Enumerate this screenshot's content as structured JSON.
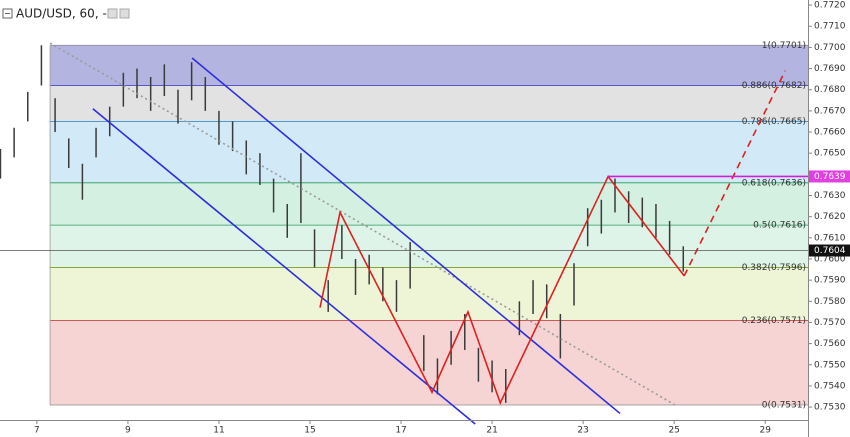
{
  "chart_data": {
    "type": "range-bar",
    "title": "AUD/USD, 60, -",
    "xlim": [
      -0.81,
      16.94
    ],
    "ylim": [
      0.75239,
      0.77224
    ],
    "xticks": [
      {
        "value": 0,
        "label": "7"
      },
      {
        "value": 2,
        "label": "9"
      },
      {
        "value": 4,
        "label": "11"
      },
      {
        "value": 6,
        "label": "15"
      },
      {
        "value": 8,
        "label": "17"
      },
      {
        "value": 10,
        "label": "21"
      },
      {
        "value": 12,
        "label": "23"
      },
      {
        "value": 14,
        "label": "25"
      },
      {
        "value": 16,
        "label": "29"
      }
    ],
    "yticks": [
      {
        "value": 0.753,
        "label": "0.7530"
      },
      {
        "value": 0.754,
        "label": "0.7540"
      },
      {
        "value": 0.755,
        "label": "0.7550"
      },
      {
        "value": 0.756,
        "label": "0.7560"
      },
      {
        "value": 0.757,
        "label": "0.7570"
      },
      {
        "value": 0.758,
        "label": "0.7580"
      },
      {
        "value": 0.759,
        "label": "0.7590"
      },
      {
        "value": 0.76,
        "label": "0.7600"
      },
      {
        "value": 0.761,
        "label": "0.7610"
      },
      {
        "value": 0.762,
        "label": "0.7620"
      },
      {
        "value": 0.763,
        "label": "0.7630"
      },
      {
        "value": 0.764,
        "label": "0.7640"
      },
      {
        "value": 0.765,
        "label": "0.7650"
      },
      {
        "value": 0.766,
        "label": "0.7660"
      },
      {
        "value": 0.767,
        "label": "0.7670"
      },
      {
        "value": 0.768,
        "label": "0.7680"
      },
      {
        "value": 0.769,
        "label": "0.7690"
      },
      {
        "value": 0.77,
        "label": "0.7700"
      },
      {
        "value": 0.771,
        "label": "0.7710"
      },
      {
        "value": 0.772,
        "label": "0.7720"
      }
    ],
    "color": "#3a3a3a",
    "bars": {
      "x": [
        -0.8,
        -0.5,
        -0.2,
        0.1,
        0.4,
        0.7,
        1.0,
        1.3,
        1.6,
        1.9,
        2.2,
        2.5,
        2.8,
        3.1,
        3.4,
        3.7,
        4.0,
        4.3,
        4.6,
        4.9,
        5.2,
        5.5,
        5.8,
        6.1,
        6.4,
        6.7,
        7.0,
        7.3,
        7.6,
        7.9,
        8.2,
        8.5,
        8.8,
        9.1,
        9.4,
        9.7,
        10.0,
        10.3,
        10.6,
        10.9,
        11.2,
        11.5,
        11.8,
        12.1,
        12.4,
        12.7,
        13.0,
        13.3,
        13.6,
        13.9,
        14.2
      ],
      "low": [
        0.7638,
        0.7648,
        0.7665,
        0.7682,
        0.766,
        0.7643,
        0.7628,
        0.7648,
        0.7658,
        0.7672,
        0.7676,
        0.767,
        0.7677,
        0.7664,
        0.7675,
        0.767,
        0.7654,
        0.7651,
        0.764,
        0.7635,
        0.7622,
        0.761,
        0.7617,
        0.7596,
        0.7575,
        0.76,
        0.7583,
        0.7588,
        0.758,
        0.7575,
        0.7586,
        0.7547,
        0.7536,
        0.755,
        0.7557,
        0.7542,
        0.7537,
        0.7532,
        0.7564,
        0.7574,
        0.7572,
        0.7553,
        0.7578,
        0.7606,
        0.7612,
        0.7622,
        0.7617,
        0.7615,
        0.761,
        0.7602,
        0.7594
      ],
      "high": [
        0.7652,
        0.7662,
        0.7679,
        0.7701,
        0.7676,
        0.7657,
        0.7645,
        0.7662,
        0.7672,
        0.7688,
        0.769,
        0.7686,
        0.7692,
        0.768,
        0.7693,
        0.7686,
        0.767,
        0.7665,
        0.7656,
        0.765,
        0.7638,
        0.7626,
        0.765,
        0.7614,
        0.759,
        0.7616,
        0.76,
        0.7602,
        0.7596,
        0.759,
        0.7608,
        0.7564,
        0.7553,
        0.7566,
        0.7574,
        0.7558,
        0.7552,
        0.7548,
        0.758,
        0.759,
        0.7588,
        0.7574,
        0.7598,
        0.7624,
        0.7628,
        0.7638,
        0.7632,
        0.7629,
        0.7626,
        0.7618,
        0.7606
      ]
    },
    "fib_start_x": 0.29,
    "fib_levels": [
      {
        "label": "1(0.7701)",
        "value": 0.7701,
        "color": "#8a8a8a",
        "zone_color": "#b4b4e0"
      },
      {
        "label": "0.886(0.7682)",
        "value": 0.7682,
        "color": "#3030c0",
        "zone_color": "#e2e2e2"
      },
      {
        "label": "0.786(0.7665)",
        "value": 0.7665,
        "color": "#3a8fc8",
        "zone_color": "#d2e9f7"
      },
      {
        "label": "0.618(0.7636)",
        "value": 0.7636,
        "color": "#2a9a5a",
        "zone_color": "#d3f0e1"
      },
      {
        "label": "0.5(0.7616)",
        "value": 0.7616,
        "color": "#2a9a5a",
        "zone_color": "#dff4e8"
      },
      {
        "label": "0.382(0.7596)",
        "value": 0.7596,
        "color": "#7a9a20",
        "zone_color": "#eef5d6"
      },
      {
        "label": "0.236(0.7571)",
        "value": 0.7571,
        "color": "#c03030",
        "zone_color": "#f6d4d4"
      },
      {
        "label": "0(0.7531)",
        "value": 0.7531,
        "color": "#8a8a8a",
        "zone_color": "#f6d4d4"
      }
    ],
    "drawings": [
      {
        "x": [
          0.29,
          14.02
        ],
        "y": [
          0.7702,
          0.7531
        ],
        "color": "#9a9a9a",
        "dash": "2 3"
      },
      {
        "x": [
          3.41,
          12.81
        ],
        "y": [
          0.7695,
          0.7527
        ],
        "color": "#2d2de0",
        "dash": ""
      },
      {
        "x": [
          1.23,
          9.63
        ],
        "y": [
          0.7671,
          0.7522
        ],
        "color": "#2d2de0",
        "dash": ""
      },
      {
        "x": [
          6.22,
          6.66,
          8.68,
          9.47,
          10.18,
          12.55,
          14.22
        ],
        "y": [
          0.7577,
          0.7622,
          0.7537,
          0.7575,
          0.7532,
          0.7639,
          0.7592
        ],
        "color": "#e02020",
        "dash": ""
      },
      {
        "x": [
          14.22,
          16.44
        ],
        "y": [
          0.7592,
          0.7689
        ],
        "color": "#e02020",
        "dash": "7 5"
      },
      {
        "x": [
          12.55,
          16.94
        ],
        "y": [
          0.7639,
          0.7639
        ],
        "color": "#d020d0",
        "dash": ""
      }
    ],
    "price_tags": [
      {
        "value": 0.7639,
        "label": "0.7639",
        "color": "#e040e0"
      },
      {
        "value": 0.7604,
        "label": "0.7604",
        "color": "#111111"
      }
    ]
  }
}
